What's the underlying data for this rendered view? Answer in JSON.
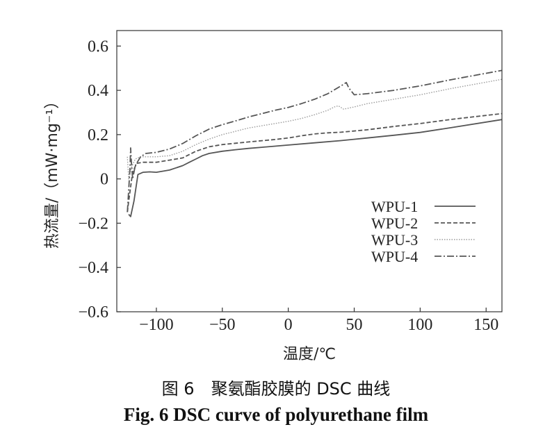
{
  "chart_data": {
    "type": "line",
    "xlabel": "温度/℃",
    "ylabel": "热流量/（mW·mg⁻¹）",
    "xlim": [
      -130,
      162
    ],
    "ylim": [
      -0.6,
      0.67
    ],
    "xticks": [
      -100,
      -50,
      0,
      50,
      100,
      150
    ],
    "xtick_labels": [
      "−100",
      "−50",
      "0",
      "50",
      "100",
      "150"
    ],
    "yticks": [
      0.6,
      0.4,
      0.2,
      0,
      -0.2,
      -0.4,
      -0.6
    ],
    "ytick_labels": [
      "0.6",
      "0.4",
      "0.2",
      "0",
      "−0.2",
      "−0.4",
      "−0.6"
    ],
    "legend_position": "center-right",
    "series": [
      {
        "name": "WPU-1",
        "color": "#555555",
        "dash": "solid",
        "x": [
          -121,
          -119.5,
          -117,
          -114,
          -110,
          -105,
          -100,
          -95,
          -90,
          -85,
          -80,
          -75,
          -70,
          -65,
          -60,
          -50,
          -40,
          -30,
          -20,
          -10,
          0,
          20,
          40,
          60,
          80,
          100,
          125,
          162
        ],
        "y": [
          -0.16,
          -0.17,
          -0.1,
          0.02,
          0.03,
          0.032,
          0.03,
          0.035,
          0.04,
          0.05,
          0.06,
          0.075,
          0.09,
          0.105,
          0.115,
          0.125,
          0.132,
          0.138,
          0.143,
          0.148,
          0.153,
          0.163,
          0.173,
          0.185,
          0.197,
          0.21,
          0.233,
          0.268
        ]
      },
      {
        "name": "WPU-2",
        "color": "#555555",
        "dash": "dashed",
        "x": [
          -122,
          -121,
          -118,
          -115,
          -110,
          -100,
          -90,
          -80,
          -75,
          -70,
          -60,
          -50,
          -30,
          -10,
          0,
          10,
          20,
          30,
          40,
          60,
          80,
          100,
          125,
          162
        ],
        "y": [
          -0.15,
          -0.1,
          0.03,
          0.07,
          0.075,
          0.075,
          0.085,
          0.095,
          0.11,
          0.125,
          0.145,
          0.155,
          0.167,
          0.178,
          0.185,
          0.195,
          0.203,
          0.208,
          0.211,
          0.222,
          0.237,
          0.25,
          0.27,
          0.295
        ]
      },
      {
        "name": "WPU-3",
        "color": "#9a9a9a",
        "dash": "dotted",
        "x": [
          -122,
          -121,
          -119,
          -116,
          -112,
          -105,
          -100,
          -90,
          -80,
          -70,
          -60,
          -50,
          -40,
          -30,
          -20,
          -10,
          0,
          10,
          20,
          30,
          35,
          38,
          42,
          50,
          60,
          80,
          100,
          125,
          162
        ],
        "y": [
          0.1,
          0.0,
          0.05,
          0.09,
          0.1,
          0.1,
          0.1,
          0.105,
          0.125,
          0.155,
          0.18,
          0.2,
          0.215,
          0.23,
          0.24,
          0.25,
          0.26,
          0.273,
          0.29,
          0.31,
          0.325,
          0.33,
          0.315,
          0.325,
          0.34,
          0.36,
          0.38,
          0.41,
          0.45
        ]
      },
      {
        "name": "WPU-4",
        "color": "#555555",
        "dash": "dashdot",
        "x": [
          -122,
          -121,
          -120,
          -119.5,
          -119,
          -118,
          -116,
          -112,
          -108,
          -100,
          -90,
          -80,
          -70,
          -60,
          -50,
          -40,
          -30,
          -20,
          -10,
          0,
          10,
          20,
          30,
          40,
          44,
          46,
          50,
          60,
          80,
          100,
          125,
          162
        ],
        "y": [
          -0.15,
          -0.05,
          0.05,
          0.14,
          0.08,
          0.0,
          0.06,
          0.1,
          0.115,
          0.12,
          0.135,
          0.16,
          0.195,
          0.225,
          0.245,
          0.262,
          0.28,
          0.295,
          0.31,
          0.323,
          0.34,
          0.36,
          0.385,
          0.42,
          0.435,
          0.41,
          0.38,
          0.385,
          0.4,
          0.42,
          0.45,
          0.49
        ]
      }
    ]
  },
  "caption": {
    "chinese": "图 6　聚氨酯胶膜的 DSC 曲线",
    "english": "Fig. 6 DSC curve of polyurethane film"
  }
}
